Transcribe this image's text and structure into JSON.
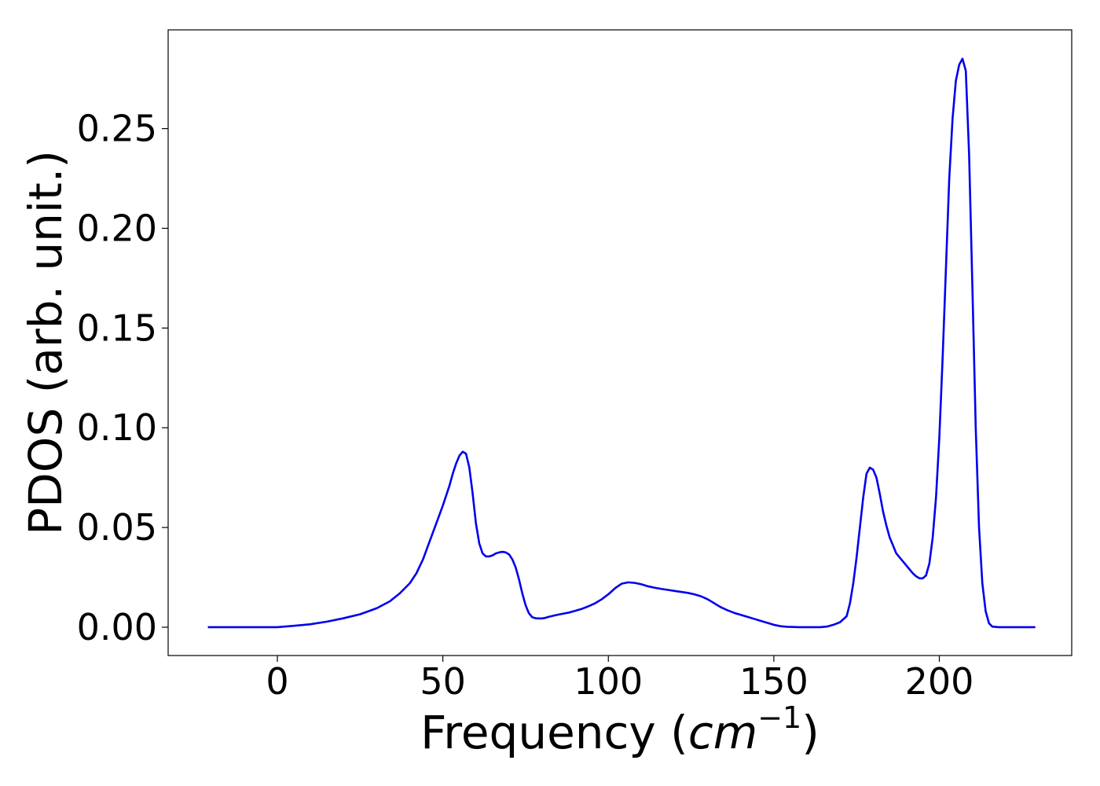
{
  "chart_data": {
    "type": "line",
    "title": "",
    "xlabel": {
      "main": "Frequency (",
      "var": "cm",
      "sup": "−1",
      "close": ")"
    },
    "ylabel": "PDOS (arb. unit.)",
    "xlim": [
      -33,
      240
    ],
    "ylim": [
      -0.0142,
      0.2995
    ],
    "xticks": [
      0,
      50,
      100,
      150,
      200
    ],
    "xtick_labels": [
      "0",
      "50",
      "100",
      "150",
      "200"
    ],
    "yticks": [
      0.0,
      0.05,
      0.1,
      0.15,
      0.2,
      0.25
    ],
    "ytick_labels": [
      "0.00",
      "0.05",
      "0.10",
      "0.15",
      "0.20",
      "0.25"
    ],
    "grid": false,
    "legend": "none",
    "series": [
      {
        "color": "#0000ee",
        "x": [
          -21,
          0,
          5,
          10,
          15,
          20,
          25,
          30,
          34,
          37,
          40,
          42,
          44,
          46,
          48,
          50,
          52,
          53,
          54,
          55,
          56,
          57,
          58,
          59,
          60,
          61,
          62,
          63,
          64,
          65,
          66,
          67,
          68,
          69,
          70,
          71,
          72,
          73,
          74,
          75,
          76,
          77,
          78,
          79,
          80,
          81,
          82,
          84,
          86,
          88,
          90,
          92,
          94,
          96,
          98,
          100,
          102,
          104,
          106,
          108,
          110,
          112,
          114,
          116,
          118,
          120,
          122,
          124,
          126,
          128,
          130,
          132,
          134,
          136,
          138,
          140,
          142,
          144,
          146,
          148,
          150,
          152,
          154,
          156,
          158,
          160,
          162,
          164,
          166,
          168,
          170,
          172,
          173,
          174,
          175,
          176,
          177,
          178,
          179,
          180,
          181,
          182,
          183,
          184,
          185,
          186,
          187,
          188,
          189,
          190,
          191,
          192,
          193,
          194,
          195,
          196,
          197,
          198,
          199,
          200,
          201,
          202,
          203,
          204,
          205,
          206,
          207,
          208,
          209,
          210,
          211,
          212,
          213,
          214,
          215,
          216,
          218,
          229
        ],
        "y": [
          0.0,
          0.0,
          0.0007,
          0.0015,
          0.0028,
          0.0045,
          0.0065,
          0.0095,
          0.013,
          0.017,
          0.022,
          0.027,
          0.034,
          0.043,
          0.052,
          0.061,
          0.071,
          0.077,
          0.082,
          0.086,
          0.088,
          0.087,
          0.08,
          0.067,
          0.052,
          0.042,
          0.037,
          0.0355,
          0.0355,
          0.036,
          0.037,
          0.0375,
          0.0378,
          0.0375,
          0.0365,
          0.034,
          0.03,
          0.024,
          0.017,
          0.011,
          0.007,
          0.005,
          0.0045,
          0.0044,
          0.0044,
          0.0047,
          0.0052,
          0.006,
          0.0067,
          0.0073,
          0.0082,
          0.0092,
          0.0105,
          0.012,
          0.014,
          0.0165,
          0.0195,
          0.0218,
          0.0225,
          0.0222,
          0.0215,
          0.0205,
          0.0198,
          0.0192,
          0.0187,
          0.0182,
          0.0177,
          0.0172,
          0.0165,
          0.0155,
          0.014,
          0.012,
          0.01,
          0.0085,
          0.0072,
          0.0062,
          0.0052,
          0.0042,
          0.0032,
          0.0022,
          0.0012,
          0.0005,
          0.0002,
          0.0001,
          0.0,
          0.0,
          0.0,
          0.0,
          0.0003,
          0.0012,
          0.0025,
          0.0055,
          0.012,
          0.022,
          0.035,
          0.05,
          0.065,
          0.077,
          0.08,
          0.079,
          0.075,
          0.067,
          0.058,
          0.051,
          0.045,
          0.041,
          0.037,
          0.035,
          0.033,
          0.031,
          0.029,
          0.027,
          0.0255,
          0.0245,
          0.0245,
          0.026,
          0.032,
          0.045,
          0.065,
          0.095,
          0.135,
          0.18,
          0.225,
          0.255,
          0.274,
          0.282,
          0.285,
          0.279,
          0.237,
          0.17,
          0.1,
          0.05,
          0.022,
          0.008,
          0.002,
          0.0003,
          0.0,
          0.0
        ]
      }
    ]
  }
}
